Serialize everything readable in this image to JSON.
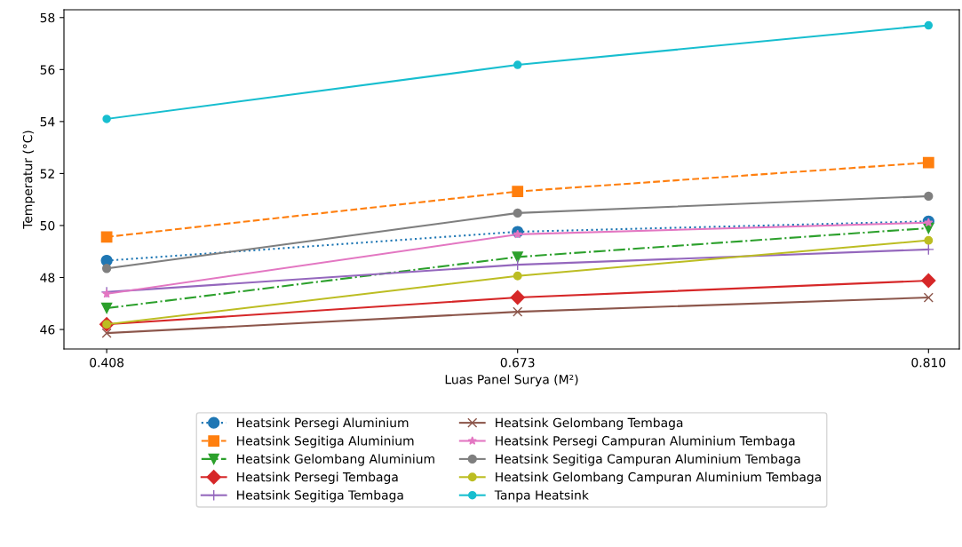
{
  "chart_data": {
    "type": "line",
    "xlabel": "Luas Panel Surya (M²)",
    "ylabel": "Temperatur (°C)",
    "categories": [
      "0.408",
      "0.673",
      "0.810"
    ],
    "ylim": [
      45.25,
      58.3
    ],
    "yticks": [
      46,
      48,
      50,
      52,
      54,
      56,
      58
    ],
    "grid": false,
    "legend": "bottom",
    "series": [
      {
        "name": "Heatsink Persegi Aluminium",
        "color": "#1f77b4",
        "marker": "circle",
        "line_style": "dotted",
        "values": [
          48.65,
          49.76,
          50.16
        ]
      },
      {
        "name": "Heatsink Segitiga Aluminium",
        "color": "#ff7f0e",
        "marker": "square",
        "line_style": "dashed",
        "values": [
          49.56,
          51.31,
          52.42
        ]
      },
      {
        "name": "Heatsink Gelombang Aluminium",
        "color": "#2ca02c",
        "marker": "triangle",
        "line_style": "dashdot",
        "values": [
          46.82,
          48.79,
          49.9
        ]
      },
      {
        "name": "Heatsink Persegi Tembaga",
        "color": "#d62728",
        "marker": "diamond",
        "line_style": "solid",
        "values": [
          46.2,
          47.23,
          47.88
        ]
      },
      {
        "name": "Heatsink Segitiga Tembaga",
        "color": "#9467bd",
        "marker": "plus",
        "line_style": "solid",
        "values": [
          47.44,
          48.49,
          49.08
        ]
      },
      {
        "name": "Heatsink Gelombang Tembaga",
        "color": "#8c564b",
        "marker": "cross",
        "line_style": "solid",
        "values": [
          45.86,
          46.68,
          47.23
        ]
      },
      {
        "name": "Heatsink Persegi Campuran Aluminium Tembaga",
        "color": "#e377c2",
        "marker": "star",
        "line_style": "solid",
        "values": [
          47.37,
          49.66,
          50.11
        ]
      },
      {
        "name": "Heatsink Segitiga Campuran Aluminium Tembaga",
        "color": "#7f7f7f",
        "marker": "circle",
        "line_style": "solid",
        "values": [
          48.35,
          50.48,
          51.13
        ]
      },
      {
        "name": "Heatsink Gelombang Campuran Aluminium Tembaga",
        "color": "#bcbd22",
        "marker": "circle",
        "line_style": "solid",
        "values": [
          46.2,
          48.06,
          49.43
        ]
      },
      {
        "name": "Tanpa Heatsink",
        "color": "#17becf",
        "marker": "circle",
        "line_style": "solid",
        "values": [
          54.1,
          56.18,
          57.7
        ]
      }
    ]
  }
}
